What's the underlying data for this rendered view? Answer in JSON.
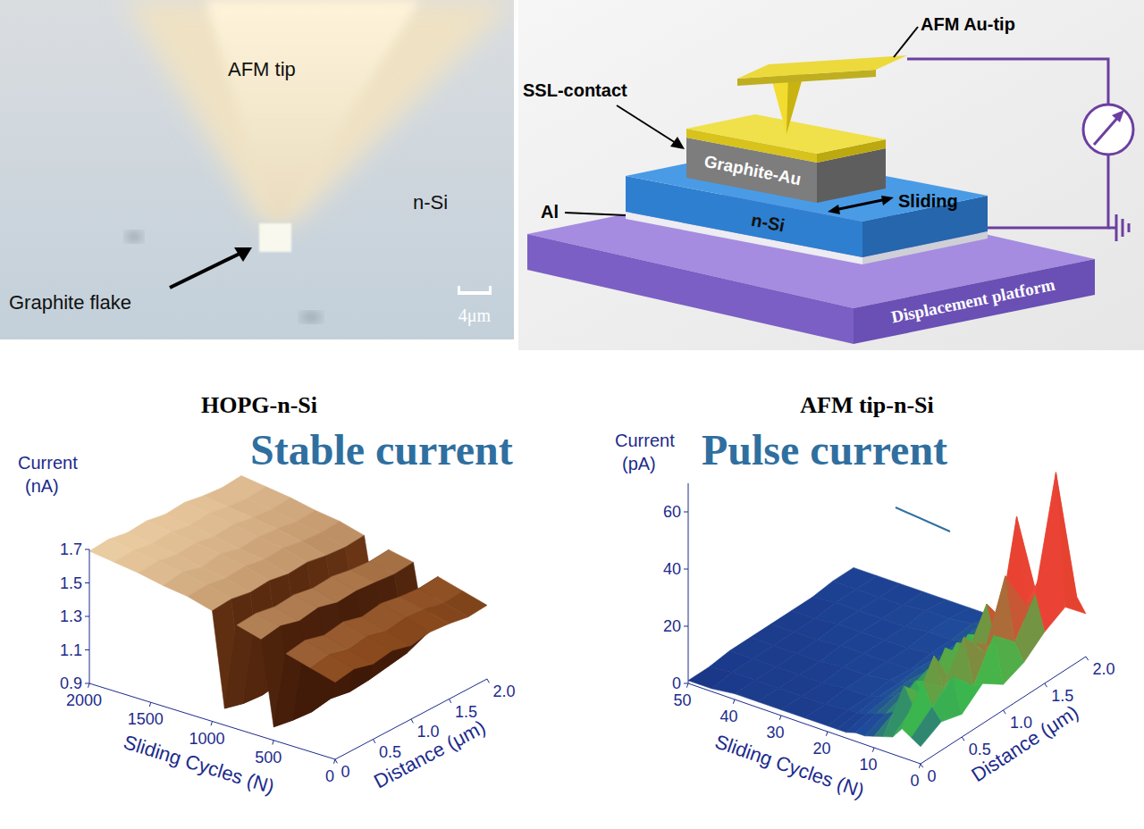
{
  "photo": {
    "labels": {
      "tip": "AFM tip",
      "substrate": "n-Si",
      "flake": "Graphite flake",
      "scale_bar": "4μm"
    }
  },
  "schematic": {
    "labels": {
      "tip": "AFM Au-tip",
      "contact": "SSL-contact",
      "block": "Graphite-Au",
      "motion": "Sliding",
      "substrate": "n-Si",
      "electrode": "Al",
      "stage": "Displacement platform"
    }
  },
  "chart_data": [
    {
      "type": "surface",
      "title": "HOPG-n-Si",
      "annotation": "Stable current",
      "zlabel": [
        "Current",
        "(nA)"
      ],
      "xlabel": "Sliding Cycles (N)",
      "ylabel": "Distance (μm)",
      "x": [
        0,
        200,
        400,
        500,
        600,
        800,
        900,
        1000,
        1200,
        1400,
        1600,
        1800,
        2000
      ],
      "y": [
        0,
        0.25,
        0.5,
        0.75,
        1,
        1.25,
        1.5,
        1.75,
        2
      ],
      "z": [
        [
          1.36,
          1.38,
          1.35,
          1.37,
          1.34,
          1.36,
          1.35,
          1.33,
          1.34
        ],
        [
          1.4,
          1.42,
          1.39,
          1.41,
          1.38,
          1.4,
          1.39,
          1.37,
          1.38
        ],
        [
          1.44,
          1.46,
          1.43,
          1.45,
          1.42,
          1.44,
          1.42,
          1.41,
          1.42
        ],
        [
          0.98,
          0.96,
          0.95,
          0.97,
          0.95,
          0.96,
          0.98,
          1.0,
          1.05
        ],
        [
          1.48,
          1.5,
          1.47,
          1.49,
          1.46,
          1.47,
          1.46,
          1.45,
          1.46
        ],
        [
          1.52,
          1.53,
          1.51,
          1.52,
          1.5,
          1.51,
          1.49,
          1.48,
          1.49
        ],
        [
          1.0,
          0.97,
          0.96,
          0.98,
          0.97,
          0.99,
          1.02,
          1.05,
          1.1
        ],
        [
          1.56,
          1.57,
          1.55,
          1.56,
          1.54,
          1.55,
          1.53,
          1.52,
          1.53
        ],
        [
          1.6,
          1.61,
          1.59,
          1.6,
          1.58,
          1.59,
          1.57,
          1.56,
          1.57
        ],
        [
          1.62,
          1.64,
          1.61,
          1.63,
          1.6,
          1.61,
          1.6,
          1.58,
          1.59
        ],
        [
          1.65,
          1.66,
          1.64,
          1.65,
          1.63,
          1.64,
          1.62,
          1.61,
          1.62
        ],
        [
          1.67,
          1.68,
          1.66,
          1.67,
          1.65,
          1.66,
          1.64,
          1.63,
          1.64
        ],
        [
          1.69,
          1.7,
          1.68,
          1.69,
          1.67,
          1.68,
          1.66,
          1.65,
          1.66
        ]
      ],
      "xlim": [
        0,
        2000
      ],
      "xticks": [
        0,
        500,
        1000,
        1500,
        2000
      ],
      "ylim": [
        0,
        2
      ],
      "yticks": [
        0,
        0.5,
        {
          "value": 1,
          "label": "1.0"
        },
        1.5,
        {
          "value": 2,
          "label": "2.0"
        }
      ],
      "zlim": [
        0.9,
        1.7
      ],
      "zticks": [
        0.9,
        1.1,
        1.3,
        1.5,
        1.7
      ]
    },
    {
      "type": "surface",
      "title": "AFM tip-n-Si",
      "annotation": "Pulse current",
      "zlabel": [
        "Current",
        "(pA)"
      ],
      "xlabel": "Sliding Cycles (N)",
      "ylabel": "Distance (μm)",
      "x": [
        0,
        2,
        4,
        6,
        8,
        10,
        12,
        14,
        16,
        18,
        20,
        25,
        30,
        35,
        40,
        45,
        50
      ],
      "y": [
        0,
        0.25,
        0.5,
        0.75,
        1,
        1.25,
        1.5,
        1.75,
        2
      ],
      "z": [
        [
          6,
          10,
          8,
          14,
          9,
          12,
          18,
          22,
          15
        ],
        [
          8,
          14,
          20,
          12,
          25,
          18,
          30,
          68,
          20
        ],
        [
          10,
          22,
          15,
          28,
          18,
          40,
          25,
          35,
          18
        ],
        [
          6,
          12,
          25,
          10,
          20,
          15,
          55,
          22,
          12
        ],
        [
          5,
          18,
          10,
          22,
          14,
          28,
          16,
          20,
          10
        ],
        [
          4,
          8,
          14,
          9,
          18,
          12,
          20,
          14,
          8
        ],
        [
          3,
          6,
          9,
          12,
          8,
          15,
          10,
          12,
          6
        ],
        [
          3,
          5,
          7,
          6,
          9,
          8,
          11,
          9,
          5
        ],
        [
          2,
          4,
          5,
          6,
          5,
          7,
          6,
          8,
          4
        ],
        [
          2,
          3,
          4,
          4,
          5,
          4,
          5,
          6,
          4
        ],
        [
          2,
          3,
          3,
          4,
          3,
          4,
          4,
          5,
          3
        ],
        [
          2,
          2,
          3,
          3,
          3,
          3,
          4,
          4,
          3
        ],
        [
          2,
          2,
          2,
          3,
          3,
          3,
          3,
          4,
          3
        ],
        [
          2,
          2,
          2,
          2,
          3,
          3,
          3,
          3,
          3
        ],
        [
          2,
          2,
          2,
          2,
          2,
          3,
          3,
          3,
          3
        ],
        [
          1,
          2,
          2,
          2,
          2,
          2,
          3,
          3,
          3
        ],
        [
          1,
          1,
          2,
          2,
          2,
          2,
          2,
          3,
          3
        ]
      ],
      "xlim": [
        0,
        50
      ],
      "xticks": [
        0,
        10,
        20,
        30,
        40,
        50
      ],
      "ylim": [
        0,
        2
      ],
      "yticks": [
        0,
        0.5,
        {
          "value": 1,
          "label": "1.0"
        },
        1.5,
        {
          "value": 2,
          "label": "2.0"
        }
      ],
      "zlim": [
        0,
        70
      ],
      "zticks": [
        0,
        20,
        40,
        60
      ]
    }
  ]
}
